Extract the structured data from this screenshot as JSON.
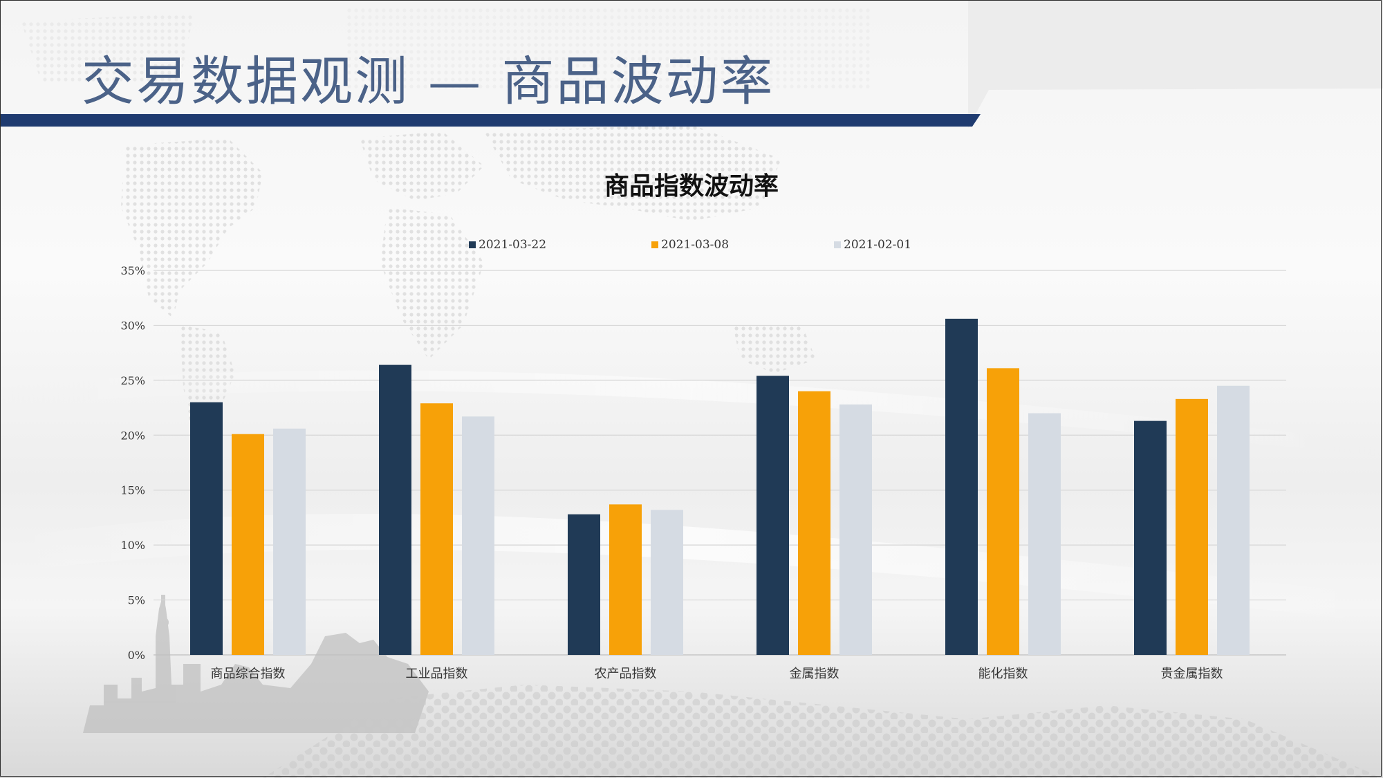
{
  "slide": {
    "title": "交易数据观测 — 商品波动率"
  },
  "colors": {
    "title_text": "#4b6288",
    "header_bar": "#1f3b70",
    "series_1": "#203a56",
    "series_2": "#f7a108",
    "series_3": "#d5dbe3",
    "gridline": "#d6d6d6"
  },
  "chart_data": {
    "type": "bar",
    "title": "商品指数波动率",
    "categories": [
      "商品综合指数",
      "工业品指数",
      "农产品指数",
      "金属指数",
      "能化指数",
      "贵金属指数"
    ],
    "series": [
      {
        "name": "2021-03-22",
        "values": [
          23.0,
          26.4,
          12.8,
          25.4,
          30.6,
          21.3
        ]
      },
      {
        "name": "2021-03-08",
        "values": [
          20.1,
          22.9,
          13.7,
          24.0,
          26.1,
          23.3
        ]
      },
      {
        "name": "2021-02-01",
        "values": [
          20.6,
          21.7,
          13.2,
          22.8,
          22.0,
          24.5
        ]
      }
    ],
    "ylim": [
      0,
      35
    ],
    "yticks": [
      0,
      5,
      10,
      15,
      20,
      25,
      30,
      35
    ],
    "ytick_labels": [
      "0%",
      "5%",
      "10%",
      "15%",
      "20%",
      "25%",
      "30%",
      "35%"
    ],
    "xlabel": "",
    "ylabel": "",
    "grid": true,
    "legend_position": "top"
  }
}
